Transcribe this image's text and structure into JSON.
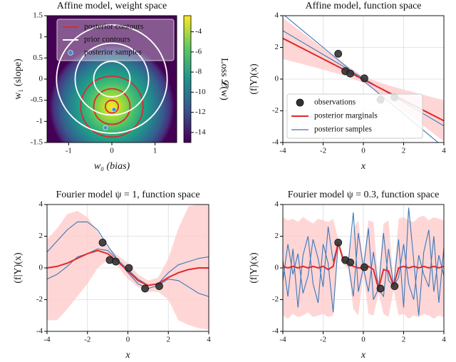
{
  "chart_data": [
    {
      "type": "contour",
      "title": "Affine model, weight space",
      "x_label": "w₀ (bias)",
      "y_label": "w₁ (slope)",
      "xlim": [
        -1.5,
        1.5
      ],
      "xticks": [
        -1,
        0,
        1
      ],
      "ylim": [
        -1.5,
        1.5
      ],
      "yticks": [
        -1.5,
        -1,
        -0.5,
        0,
        0.5,
        1,
        1.5
      ],
      "colorbar": {
        "label": "Loss 𝓛(w)",
        "lim": [
          -15,
          -2.4
        ],
        "ticks": [
          -4,
          -6,
          -8,
          -10,
          -12,
          -14
        ],
        "colormap": "viridis"
      },
      "series": [
        {
          "name": "posterior contours",
          "color": "#e0282a",
          "center": [
            0,
            -0.65
          ],
          "radii": [
            0.15,
            0.42,
            0.72
          ]
        },
        {
          "name": "prior contours",
          "color": "#ffffff",
          "center": [
            0,
            0
          ],
          "radii": [
            0.42,
            0.85,
            1.28
          ]
        },
        {
          "name": "posterior samples",
          "color": "#3f8fd2",
          "x": [
            0.05,
            -0.15
          ],
          "values": [
            -0.72,
            -1.15
          ]
        }
      ],
      "legend": "upper right"
    },
    {
      "type": "line",
      "title": "Affine model, function space",
      "x_label": "x",
      "y_label": "(f|Y)(x)",
      "xlim": [
        -4,
        4
      ],
      "xticks": [
        -4,
        -2,
        0,
        2,
        4
      ],
      "ylim": [
        -4,
        4
      ],
      "yticks": [
        -4,
        -2,
        0,
        2,
        4
      ],
      "grid": true,
      "x": [
        -4,
        -3,
        -2,
        -1,
        0,
        1,
        2,
        3,
        4
      ],
      "observations": {
        "name": "observations",
        "color": "#333333",
        "x": [
          -1.25,
          -0.9,
          -0.65,
          0.05,
          0.85,
          1.55
        ],
        "values": [
          1.6,
          0.5,
          0.35,
          0.05,
          -1.3,
          -1.15
        ]
      },
      "posterior": {
        "name": "posterior marginals",
        "color": "#e0282a",
        "band_color": "#ffcccc",
        "values": [
          2.57,
          1.92,
          1.27,
          0.62,
          -0.03,
          -0.68,
          -1.33,
          -1.98,
          -2.63
        ],
        "upper": [
          3.87,
          2.9,
          1.94,
          1.0,
          0.17,
          -0.3,
          -0.66,
          -1.0,
          -1.33
        ],
        "lower": [
          1.27,
          0.94,
          0.6,
          0.24,
          -0.23,
          -1.06,
          -2.0,
          -2.96,
          -3.93
        ]
      },
      "samples": {
        "name": "posterior samples",
        "color": "#3a78b8",
        "values": [
          [
            4.1,
            3.05,
            2.0,
            0.95,
            -0.1,
            -1.15,
            -2.2,
            -3.25,
            -4.3
          ],
          [
            3.05,
            2.3,
            1.55,
            0.8,
            0.05,
            -0.7,
            -1.45,
            -2.2,
            -2.95
          ]
        ]
      },
      "legend": "lower left"
    },
    {
      "type": "line",
      "title": "Fourier model ψ = 1, function space",
      "x_label": "x",
      "y_label": "(f|Y)(x)",
      "xlim": [
        -4,
        4
      ],
      "xticks": [
        -4,
        -2,
        0,
        2,
        4
      ],
      "ylim": [
        -4,
        4
      ],
      "yticks": [
        -4,
        -2,
        0,
        2,
        4
      ],
      "grid": true,
      "x": [
        -4,
        -3.5,
        -3,
        -2.5,
        -2,
        -1.5,
        -1,
        -0.5,
        0,
        0.5,
        1,
        1.5,
        2,
        2.5,
        3,
        3.5,
        4
      ],
      "observations": {
        "color": "#333333",
        "x": [
          -1.25,
          -0.9,
          -0.6,
          0.05,
          0.85,
          1.55
        ],
        "values": [
          1.6,
          0.5,
          0.4,
          0.0,
          -1.3,
          -1.15
        ]
      },
      "posterior": {
        "color": "#e0282a",
        "band_color": "#ffcccc",
        "values": [
          0,
          0.1,
          0.3,
          0.6,
          0.9,
          1.1,
          0.9,
          0.4,
          -0.2,
          -0.8,
          -1.1,
          -1.0,
          -0.6,
          -0.3,
          -0.1,
          0,
          0
        ],
        "upper": [
          1.8,
          2.5,
          3.4,
          3.6,
          3.2,
          2.3,
          1.3,
          0.8,
          0.3,
          -0.4,
          -0.8,
          -0.6,
          0.6,
          2.5,
          3.9,
          4.0,
          4.0
        ],
        "lower": [
          -3.3,
          -3.3,
          -2.6,
          -1.8,
          -1.0,
          0.0,
          0.5,
          0.1,
          -0.7,
          -1.2,
          -1.5,
          -1.5,
          -2.0,
          -3.3,
          -3.6,
          -3.8,
          -3.9
        ]
      },
      "samples": {
        "color": "#3a78b8",
        "values": [
          [
            1.0,
            1.7,
            2.4,
            2.9,
            2.9,
            2.4,
            1.4,
            0.5,
            -0.3,
            -1.0,
            -1.3,
            -1.1,
            -0.7,
            -0.8,
            -1.2,
            -1.6,
            -1.8
          ],
          [
            -0.7,
            -0.4,
            0.1,
            0.7,
            0.9,
            1.2,
            1.1,
            0.5,
            -0.1,
            -0.7,
            -1.1,
            -1.0,
            -0.3,
            0.2,
            0.4,
            0.6,
            0.7
          ]
        ]
      }
    },
    {
      "type": "line",
      "title": "Fourier model ψ = 0.3, function space",
      "x_label": "x",
      "y_label": "(f|Y)(x)",
      "xlim": [
        -4,
        4
      ],
      "xticks": [
        -4,
        -2,
        0,
        2,
        4
      ],
      "ylim": [
        -4,
        4
      ],
      "yticks": [
        -4,
        -2,
        0,
        2,
        4
      ],
      "grid": true,
      "x": [
        -4,
        -3.75,
        -3.5,
        -3.25,
        -3,
        -2.75,
        -2.5,
        -2.25,
        -2,
        -1.75,
        -1.5,
        -1.25,
        -1,
        -0.75,
        -0.5,
        -0.25,
        0,
        0.25,
        0.5,
        0.75,
        1,
        1.25,
        1.5,
        1.75,
        2,
        2.25,
        2.5,
        2.75,
        3,
        3.25,
        3.5,
        3.75,
        4
      ],
      "observations": {
        "color": "#333333",
        "x": [
          -1.25,
          -0.9,
          -0.65,
          0.05,
          0.85,
          1.55
        ],
        "values": [
          1.6,
          0.5,
          0.35,
          0.05,
          -1.3,
          -1.15
        ]
      },
      "posterior": {
        "color": "#e0282a",
        "band_color": "#ffcccc",
        "values": [
          0.1,
          0,
          0.1,
          0,
          0.1,
          0,
          0.1,
          0,
          0.1,
          -0.1,
          0.1,
          1.6,
          0.5,
          0.3,
          0.1,
          0,
          0,
          0.1,
          -0.1,
          -1.3,
          -0.1,
          -0.2,
          -1.15,
          0,
          0.1,
          0,
          0.1,
          0,
          0.1,
          0,
          0.1,
          0,
          0.1
        ],
        "upper": [
          3.2,
          3.0,
          3.1,
          2.9,
          3.2,
          3.0,
          2.8,
          3.1,
          3.0,
          2.9,
          3.1,
          1.8,
          0.8,
          0.6,
          2.5,
          3.0,
          0.3,
          3.0,
          2.9,
          -1.0,
          2.8,
          3.0,
          -0.9,
          3.1,
          3.2,
          3.0,
          2.9,
          3.2,
          3.3,
          3.0,
          3.2,
          3.1,
          3.0
        ],
        "lower": [
          -3.0,
          -3.2,
          -2.9,
          -3.1,
          -3.0,
          -2.8,
          -3.1,
          -3.0,
          -2.9,
          -3.1,
          -3.0,
          1.4,
          0.2,
          0.0,
          -2.6,
          -3.0,
          -0.3,
          -2.9,
          -3.0,
          -1.6,
          -2.9,
          -3.1,
          -1.4,
          -3.0,
          -2.9,
          -3.2,
          -3.0,
          -3.1,
          -2.9,
          -3.0,
          -3.2,
          -3.0,
          -3.1
        ]
      },
      "samples": {
        "color": "#3a78b8",
        "values": [
          [
            0.5,
            -1.8,
            1.2,
            -2.5,
            0.8,
            2.0,
            -1.0,
            -2.2,
            1.5,
            0.3,
            -2.8,
            1.6,
            0.5,
            0.3,
            3.5,
            -1.5,
            0.0,
            2.5,
            -2.0,
            -1.3,
            2.2,
            -0.8,
            -1.15,
            1.8,
            -2.5,
            3.8,
            0.5,
            -3.0,
            1.0,
            2.4,
            -1.5,
            0.8,
            -0.5
          ],
          [
            -0.8,
            1.5,
            -0.4,
            0.9,
            -1.6,
            -0.5,
            1.8,
            0.6,
            -1.2,
            2.6,
            0.4,
            1.6,
            0.5,
            0.3,
            -1.8,
            2.2,
            0.0,
            -1.5,
            1.0,
            -1.3,
            -1.8,
            1.2,
            -1.15,
            -0.6,
            1.5,
            -1.0,
            -2.0,
            0.8,
            -0.4,
            -1.2,
            2.0,
            -2.2,
            1.3
          ]
        ]
      }
    }
  ]
}
